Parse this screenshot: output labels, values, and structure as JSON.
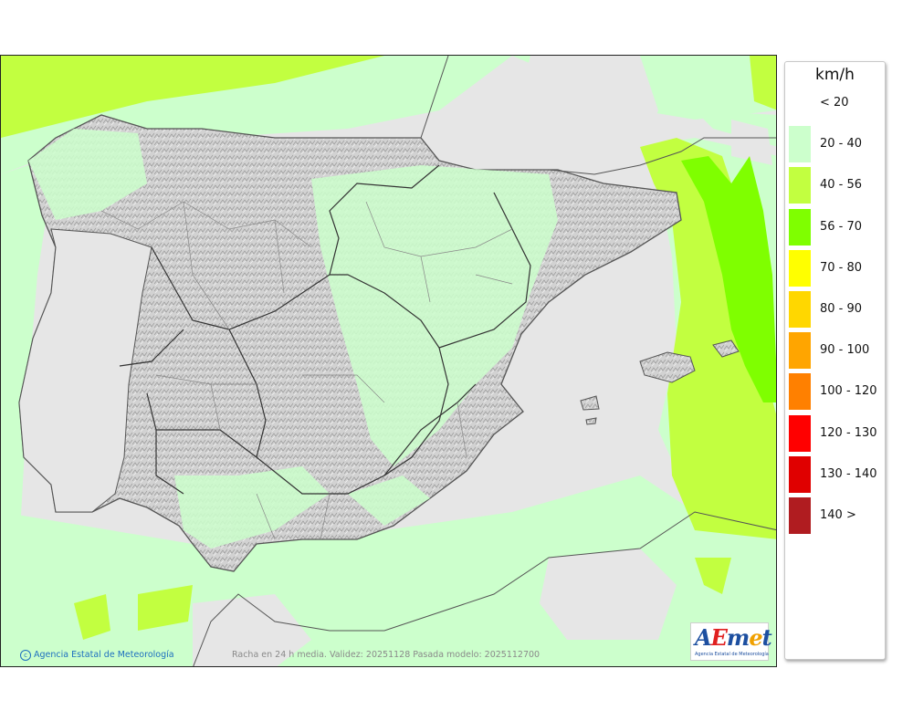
{
  "legend": {
    "title": "km/h",
    "items": [
      {
        "label": "< 20",
        "color": ""
      },
      {
        "label": "20 - 40",
        "color": "#ccffcc"
      },
      {
        "label": "40 - 56",
        "color": "#c2ff40"
      },
      {
        "label": "56 - 70",
        "color": "#7fff00"
      },
      {
        "label": "70 - 80",
        "color": "#ffff00"
      },
      {
        "label": "80 - 90",
        "color": "#ffd700"
      },
      {
        "label": "90 - 100",
        "color": "#ffa500"
      },
      {
        "label": "100 - 120",
        "color": "#ff8000"
      },
      {
        "label": "120 - 130",
        "color": "#ff0000"
      },
      {
        "label": "130 - 140",
        "color": "#e00000"
      },
      {
        "label": "140 >",
        "color": "#b01c20"
      }
    ]
  },
  "map": {
    "copyright": "Agencia Estatal de Meteorología",
    "caption": "Racha en 24 h media. Validez: 20251128 Pasada modelo: 2025112700",
    "colors": {
      "below_20": "#e6e6e6",
      "band_20_40": "#ccffcc",
      "band_40_56": "#c2ff40",
      "band_56_70": "#7fff00"
    }
  },
  "logo": {
    "brand": "AEmet",
    "subtitle": "Agencia Estatal de Meteorología"
  }
}
